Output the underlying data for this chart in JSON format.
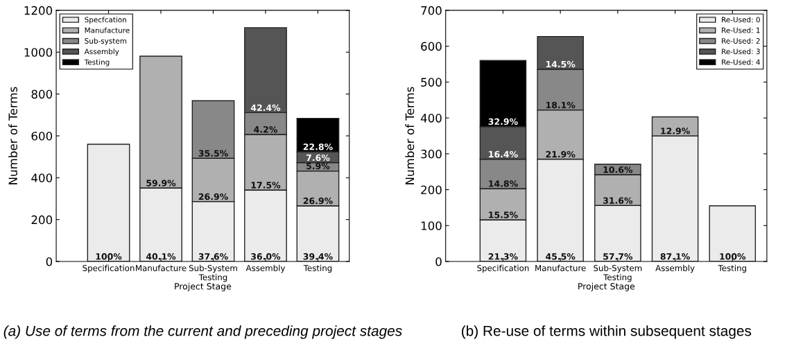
{
  "chart_data": [
    {
      "type": "bar",
      "stacked": true,
      "xlabel": "Project Stage",
      "ylabel": "Number of Terms",
      "categories": [
        "Specification",
        "Manufacture",
        "Sub-System\nTesting",
        "Assembly",
        "Testing"
      ],
      "ylim": [
        0,
        1200
      ],
      "yticks": [
        0,
        200,
        400,
        600,
        800,
        1000,
        1200
      ],
      "grid": false,
      "legend": "top left",
      "series": [
        {
          "name": "Specfcation",
          "color": "#ebebeb",
          "values": [
            560,
            351,
            286,
            341,
            266
          ]
        },
        {
          "name": "Manufacture",
          "color": "#b0b0b0",
          "values": [
            null,
            630,
            207,
            266,
            166
          ]
        },
        {
          "name": "Sub-system",
          "color": "#888888",
          "values": [
            null,
            null,
            275,
            104,
            40
          ]
        },
        {
          "name": "Assembly",
          "color": "#555555",
          "values": [
            null,
            null,
            null,
            406,
            52
          ]
        },
        {
          "name": "Testing",
          "color": "#000000",
          "values": [
            null,
            null,
            null,
            null,
            160
          ]
        }
      ],
      "annotations": [
        {
          "text": "100%",
          "x": "Specification",
          "y": 0
        },
        {
          "text": "40.1%",
          "x": "Manufacture",
          "y": 0
        },
        {
          "text": "37.6%",
          "x": "Sub-System\nTesting",
          "y": 0
        },
        {
          "text": "36.0%",
          "x": "Assembly",
          "y": 0
        },
        {
          "text": "39.4%",
          "x": "Testing",
          "y": 0
        },
        {
          "text": "59.9%",
          "x": "Manufacture",
          "y": 351
        },
        {
          "text": "26.9%",
          "x": "Sub-System\nTesting",
          "y": 286
        },
        {
          "text": "17.5%",
          "x": "Assembly",
          "y": 341
        },
        {
          "text": "26.9%",
          "x": "Testing",
          "y": 266
        },
        {
          "text": "35.5%",
          "x": "Sub-System\nTesting",
          "y": 493
        },
        {
          "text": "4.2%",
          "x": "Assembly",
          "y": 607
        },
        {
          "text": "5.9%",
          "x": "Testing",
          "y": 432
        },
        {
          "text": "42.4%",
          "x": "Assembly",
          "y": 711
        },
        {
          "text": "7.6%",
          "x": "Testing",
          "y": 472
        },
        {
          "text": "22.8%",
          "x": "Testing",
          "y": 524
        },
        "(a) Use of terms from the current and preceding project stages"
      ]
    },
    {
      "type": "bar",
      "stacked": true,
      "xlabel": "Project Stage",
      "ylabel": "Number of Terms",
      "categories": [
        "Specification",
        "Manufacture",
        "Sub-System\nTesting",
        "Assembly",
        "Testing"
      ],
      "ylim": [
        0,
        700
      ],
      "yticks": [
        0,
        100,
        200,
        300,
        400,
        500,
        600,
        700
      ],
      "grid": false,
      "legend": "top right",
      "series": [
        {
          "name": "Re-Used: 0",
          "color": "#ebebeb",
          "values": [
            116,
            285,
            156,
            350,
            155
          ]
        },
        {
          "name": "Re-Used: 1",
          "color": "#b0b0b0",
          "values": [
            87,
            137,
            86,
            53,
            null
          ]
        },
        {
          "name": "Re-Used: 2",
          "color": "#888888",
          "values": [
            82,
            114,
            29,
            null,
            null
          ]
        },
        {
          "name": "Re-Used: 3",
          "color": "#555555",
          "values": [
            91,
            91,
            null,
            null,
            null
          ]
        },
        {
          "name": "Re-Used: 4",
          "color": "#000000",
          "values": [
            184,
            null,
            null,
            null,
            null
          ]
        }
      ],
      "annotations": [
        {
          "text": "21.3%",
          "x": "Specification",
          "y": 0
        },
        {
          "text": "45.5%",
          "x": "Manufacture",
          "y": 0
        },
        {
          "text": "57.7%",
          "x": "Sub-System\nTesting",
          "y": 0
        },
        {
          "text": "87.1%",
          "x": "Assembly",
          "y": 0
        },
        {
          "text": "100%",
          "x": "Testing",
          "y": 0
        },
        {
          "text": "15.5%",
          "x": "Specification",
          "y": 116
        },
        {
          "text": "21.9%",
          "x": "Manufacture",
          "y": 285
        },
        {
          "text": "31.6%",
          "x": "Sub-System\nTesting",
          "y": 156
        },
        {
          "text": "12.9%",
          "x": "Assembly",
          "y": 350
        },
        {
          "text": "14.8%",
          "x": "Specification",
          "y": 203
        },
        {
          "text": "18.1%",
          "x": "Manufacture",
          "y": 422
        },
        {
          "text": "10.6%",
          "x": "Sub-System\nTesting",
          "y": 242
        },
        {
          "text": "16.4%",
          "x": "Specification",
          "y": 285
        },
        {
          "text": "14.5%",
          "x": "Manufacture",
          "y": 536
        },
        {
          "text": "32.9%",
          "x": "Specification",
          "y": 376
        },
        "(b) Re-use of terms within subsequent stages"
      ]
    }
  ]
}
